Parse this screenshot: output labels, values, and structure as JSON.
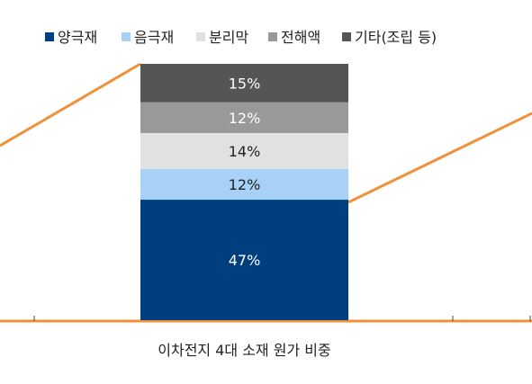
{
  "chart_data": {
    "type": "bar",
    "stacked": true,
    "categories": [
      "이차전지 4대 소재 원가 비중"
    ],
    "ylim": [
      0,
      100
    ],
    "grid": false,
    "legend_position": "top",
    "series": [
      {
        "name": "양극재",
        "values": [
          47
        ],
        "label": "47%",
        "color": "#003F7F",
        "label_color": "#ffffff"
      },
      {
        "name": "음극재",
        "values": [
          12
        ],
        "label": "12%",
        "color": "#A8D1F7",
        "label_color": "#222222"
      },
      {
        "name": "분리막",
        "values": [
          14
        ],
        "label": "14%",
        "color": "#E1E1E1",
        "label_color": "#222222"
      },
      {
        "name": "전해액",
        "values": [
          12
        ],
        "label": "12%",
        "color": "#999999",
        "label_color": "#ffffff"
      },
      {
        "name": "기타(조립 등)",
        "values": [
          15
        ],
        "label": "15%",
        "color": "#555555",
        "label_color": "#ffffff"
      }
    ],
    "accent_line_color": "#F0913A"
  }
}
